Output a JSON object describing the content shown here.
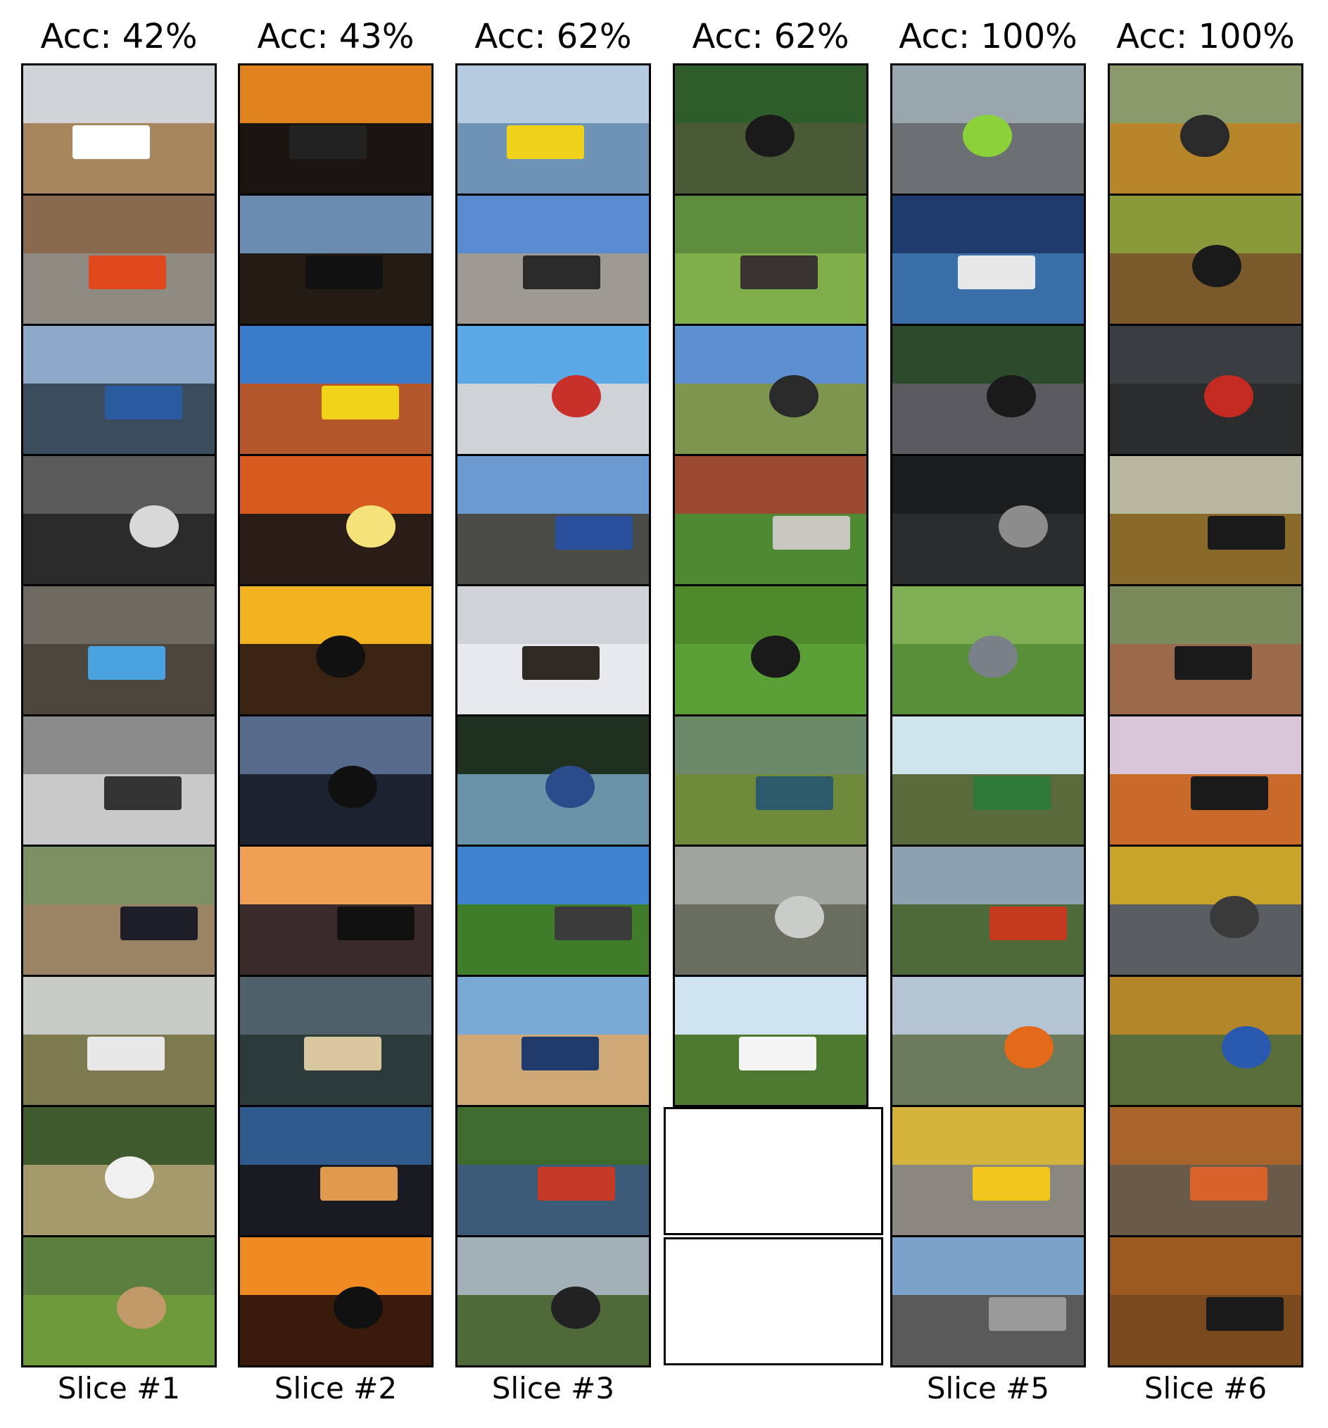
{
  "columns": [
    {
      "accuracy_label": "Acc: 42%",
      "slice_label": "Slice #1",
      "thumbnails": [
        {
          "name": "burned-hillside-truck",
          "sky": "#cfd3d6",
          "ground": "#a7865e",
          "objects": [
            {
              "c": "#ffffff",
              "shape": "rect"
            }
          ]
        },
        {
          "name": "red-scooter-cobblestone",
          "sky": "#8a6a4e",
          "ground": "#8f8a82",
          "objects": [
            {
              "c": "#e2481e",
              "shape": "rect"
            }
          ]
        },
        {
          "name": "woman-car-rapids",
          "sky": "#8ea8c9",
          "ground": "#3b4c5c",
          "objects": [
            {
              "c": "#2c5aa0",
              "shape": "rect"
            }
          ]
        },
        {
          "name": "skeleton-motorcycle-bw",
          "sky": "#5a5a5a",
          "ground": "#2a2a2a",
          "objects": [
            {
              "c": "#d8d8d8",
              "shape": "blob"
            }
          ]
        },
        {
          "name": "truck-pool-flood",
          "sky": "#6f6a61",
          "ground": "#4d463c",
          "objects": [
            {
              "c": "#4aa3e0",
              "shape": "rect"
            }
          ]
        },
        {
          "name": "flooded-street-bw",
          "sky": "#8b8b8b",
          "ground": "#c9c9c9",
          "objects": [
            {
              "c": "#333333",
              "shape": "rect"
            }
          ]
        },
        {
          "name": "woman-motorcycle-forest",
          "sky": "#7c8f62",
          "ground": "#9a8463",
          "objects": [
            {
              "c": "#1e1e28",
              "shape": "rect"
            }
          ]
        },
        {
          "name": "foggy-field-trailer",
          "sky": "#c8cbc6",
          "ground": "#7d7a4f",
          "objects": [
            {
              "c": "#e8e8e8",
              "shape": "rect"
            }
          ]
        },
        {
          "name": "zebra-dirt-road",
          "sky": "#3f5a2d",
          "ground": "#a49a6b",
          "objects": [
            {
              "c": "#f0f0f0",
              "shape": "blob"
            }
          ]
        },
        {
          "name": "camels-park",
          "sky": "#5b7f3e",
          "ground": "#6e9a3c",
          "objects": [
            {
              "c": "#c29a6a",
              "shape": "blob"
            }
          ]
        }
      ]
    },
    {
      "accuracy_label": "Acc: 43%",
      "slice_label": "Slice #2",
      "thumbnails": [
        {
          "name": "truck-sunset",
          "sky": "#e0831f",
          "ground": "#1c1410",
          "objects": [
            {
              "c": "#222222",
              "shape": "rect"
            }
          ]
        },
        {
          "name": "train-silhouette-dusk",
          "sky": "#6b8bb0",
          "ground": "#241b15",
          "objects": [
            {
              "c": "#111111",
              "shape": "rect"
            }
          ]
        },
        {
          "name": "australia-bus-outback",
          "sky": "#3a7cc7",
          "ground": "#b4572c",
          "objects": [
            {
              "c": "#f1d31a",
              "shape": "rect"
            }
          ]
        },
        {
          "name": "jeep-orange-dusk",
          "sky": "#d85a1e",
          "ground": "#2a1c16",
          "objects": [
            {
              "c": "#f6e27a",
              "shape": "blob"
            }
          ]
        },
        {
          "name": "cyclist-yellow-sky",
          "sky": "#f3b21f",
          "ground": "#3b2412",
          "objects": [
            {
              "c": "#111111",
              "shape": "blob"
            }
          ]
        },
        {
          "name": "bike-silhouette-night",
          "sky": "#566a8b",
          "ground": "#1d2230",
          "objects": [
            {
              "c": "#101010",
              "shape": "blob"
            }
          ]
        },
        {
          "name": "car-reflection-sunset",
          "sky": "#f0a055",
          "ground": "#3a2a2a",
          "objects": [
            {
              "c": "#111111",
              "shape": "rect"
            }
          ]
        },
        {
          "name": "truck-highway-shutterstock",
          "sky": "#50606a",
          "ground": "#2d3a3a",
          "objects": [
            {
              "c": "#d9c7a0",
              "shape": "rect"
            }
          ]
        },
        {
          "name": "city-dusk-istock",
          "sky": "#2f5b8c",
          "ground": "#1a1a22",
          "objects": [
            {
              "c": "#e09a50",
              "shape": "rect"
            }
          ]
        },
        {
          "name": "friends-bikes-sunset",
          "sky": "#f08a22",
          "ground": "#3a1a0a",
          "objects": [
            {
              "c": "#111111",
              "shape": "blob"
            }
          ]
        }
      ]
    },
    {
      "accuracy_label": "Acc: 62%",
      "slice_label": "Slice #3",
      "thumbnails": [
        {
          "name": "amphibious-bus-water",
          "sky": "#b7cbe0",
          "ground": "#6f93b5",
          "objects": [
            {
              "c": "#f0d21c",
              "shape": "rect"
            }
          ]
        },
        {
          "name": "vehicle-beach-horizon",
          "sky": "#5a8ad0",
          "ground": "#9c9a93",
          "objects": [
            {
              "c": "#2a2a2a",
              "shape": "rect"
            }
          ]
        },
        {
          "name": "kids-scooters-palms",
          "sky": "#5aa9e6",
          "ground": "#cfd3d8",
          "objects": [
            {
              "c": "#c8302a",
              "shape": "blob"
            }
          ]
        },
        {
          "name": "bus-police-scene",
          "sky": "#6a9acf",
          "ground": "#4a4a46",
          "objects": [
            {
              "c": "#2a4f9c",
              "shape": "rect"
            }
          ]
        },
        {
          "name": "locomotive-snow",
          "sky": "#cfd3d8",
          "ground": "#e7e9ec",
          "objects": [
            {
              "c": "#2f2a24",
              "shape": "rect"
            }
          ]
        },
        {
          "name": "motorcycle-river-splash",
          "sky": "#203020",
          "ground": "#6a93a8",
          "objects": [
            {
              "c": "#2b4c8a",
              "shape": "blob"
            }
          ]
        },
        {
          "name": "manor-lawn-cars",
          "sky": "#3f83d0",
          "ground": "#3f7d2a",
          "objects": [
            {
              "c": "#3b3b3b",
              "shape": "rect"
            }
          ]
        },
        {
          "name": "pickup-beach-sand",
          "sky": "#7aa9d6",
          "ground": "#cfa877",
          "objects": [
            {
              "c": "#1f3a6b",
              "shape": "rect"
            }
          ]
        },
        {
          "name": "fire-trucks-harbor",
          "sky": "#406b2e",
          "ground": "#3b5b78",
          "objects": [
            {
              "c": "#c43a26",
              "shape": "rect"
            }
          ]
        },
        {
          "name": "cyclist-country-road",
          "sky": "#a3b0b8",
          "ground": "#4f6a38",
          "objects": [
            {
              "c": "#222222",
              "shape": "blob"
            }
          ]
        }
      ]
    },
    {
      "accuracy_label": "Acc: 62%",
      "slice_label": "",
      "thumbnails": [
        {
          "name": "bike-forest-ruins",
          "sky": "#2f5d2a",
          "ground": "#4a5a36",
          "objects": [
            {
              "c": "#1a1a1a",
              "shape": "blob"
            }
          ]
        },
        {
          "name": "abandoned-train-grass",
          "sky": "#5e8e3c",
          "ground": "#7fae4a",
          "objects": [
            {
              "c": "#3a3430",
              "shape": "rect"
            }
          ]
        },
        {
          "name": "bike-meadow-clouds",
          "sky": "#5d8fd1",
          "ground": "#7e9550",
          "objects": [
            {
              "c": "#2a2a2a",
              "shape": "blob"
            }
          ]
        },
        {
          "name": "garden-shed-bikes",
          "sky": "#9a4a30",
          "ground": "#4f8a32",
          "objects": [
            {
              "c": "#c8c8c0",
              "shape": "rect"
            }
          ]
        },
        {
          "name": "bike-green-bushes",
          "sky": "#4e8a2c",
          "ground": "#5aa036",
          "objects": [
            {
              "c": "#1a1a1a",
              "shape": "blob"
            }
          ]
        },
        {
          "name": "overturned-truck",
          "sky": "#6a8a6a",
          "ground": "#6e8a3a",
          "objects": [
            {
              "c": "#2d5a6a",
              "shape": "rect"
            }
          ]
        },
        {
          "name": "wrecked-car-forest",
          "sky": "#a0a49c",
          "ground": "#6a6e60",
          "objects": [
            {
              "c": "#c9ccc8",
              "shape": "blob"
            }
          ]
        },
        {
          "name": "car-on-rocks-tree",
          "sky": "#cfe2ef",
          "ground": "#4d7a30",
          "objects": [
            {
              "c": "#f4f4f4",
              "shape": "rect"
            }
          ]
        }
      ]
    },
    {
      "accuracy_label": "Acc: 100%",
      "slice_label": "Slice #5",
      "thumbnails": [
        {
          "name": "cyclists-city-street",
          "sky": "#9aa6ae",
          "ground": "#6d7073",
          "objects": [
            {
              "c": "#8bd13a",
              "shape": "blob"
            }
          ]
        },
        {
          "name": "scooter-rainy-night",
          "sky": "#1f3b6e",
          "ground": "#3a6ea8",
          "objects": [
            {
              "c": "#e8e8e8",
              "shape": "rect"
            }
          ]
        },
        {
          "name": "motorcycle-road-blur",
          "sky": "#2e4a2c",
          "ground": "#5a5a60",
          "objects": [
            {
              "c": "#1a1a1a",
              "shape": "blob"
            }
          ]
        },
        {
          "name": "motorcycle-studio-dark",
          "sky": "#1a1c1e",
          "ground": "#2a2c2e",
          "objects": [
            {
              "c": "#8c8c8c",
              "shape": "blob"
            }
          ]
        },
        {
          "name": "bicycle-grass",
          "sky": "#7fae55",
          "ground": "#5a8f3a",
          "objects": [
            {
              "c": "#7a8088",
              "shape": "blob"
            }
          ]
        },
        {
          "name": "passenger-train-curve",
          "sky": "#cfe3ea",
          "ground": "#5a6a3a",
          "objects": [
            {
              "c": "#2f7a3a",
              "shape": "rect"
            }
          ]
        },
        {
          "name": "three-pickups-mountains",
          "sky": "#8da1b0",
          "ground": "#4d6a38",
          "objects": [
            {
              "c": "#c43a1f",
              "shape": "rect"
            }
          ]
        },
        {
          "name": "cyclist-mountain-view",
          "sky": "#b4c4d2",
          "ground": "#6a7a5a",
          "objects": [
            {
              "c": "#e26a1a",
              "shape": "blob"
            }
          ]
        },
        {
          "name": "yellow-van-cobblestone",
          "sky": "#d2b23a",
          "ground": "#8a8680",
          "objects": [
            {
              "c": "#f3c61c",
              "shape": "rect"
            }
          ]
        },
        {
          "name": "city-highway-sunrise",
          "sky": "#7ba2c8",
          "ground": "#5a5a5a",
          "objects": [
            {
              "c": "#9a9a9a",
              "shape": "rect"
            }
          ]
        }
      ]
    },
    {
      "accuracy_label": "Acc: 100%",
      "slice_label": "Slice #6",
      "thumbnails": [
        {
          "name": "scooter-autumn-park",
          "sky": "#8a9a6a",
          "ground": "#b8862a",
          "objects": [
            {
              "c": "#2a2a2a",
              "shape": "blob"
            }
          ]
        },
        {
          "name": "ebike-autumn-forest",
          "sky": "#8a9a3a",
          "ground": "#7a5a2a",
          "objects": [
            {
              "c": "#1a1a1a",
              "shape": "blob"
            }
          ]
        },
        {
          "name": "man-carrying-bikes",
          "sky": "#3a3e40",
          "ground": "#2a2c2e",
          "objects": [
            {
              "c": "#c42a22",
              "shape": "blob"
            }
          ]
        },
        {
          "name": "steam-train-autumn",
          "sky": "#b8b8a0",
          "ground": "#8a6a2a",
          "objects": [
            {
              "c": "#1a1a1a",
              "shape": "rect"
            }
          ]
        },
        {
          "name": "man-mobility-scooter",
          "sky": "#7a8a5a",
          "ground": "#9a6a4a",
          "objects": [
            {
              "c": "#1a1a1a",
              "shape": "rect"
            }
          ]
        },
        {
          "name": "steam-train-painting",
          "sky": "#d9c7d9",
          "ground": "#c86a2a",
          "objects": [
            {
              "c": "#1a1a1a",
              "shape": "rect"
            }
          ]
        },
        {
          "name": "child-scooter-road",
          "sky": "#c8a42a",
          "ground": "#5a5e62",
          "objects": [
            {
              "c": "#3a3a3a",
              "shape": "blob"
            }
          ]
        },
        {
          "name": "child-balance-bike",
          "sky": "#b4862a",
          "ground": "#5a6e3a",
          "objects": [
            {
              "c": "#2a5ab0",
              "shape": "blob"
            }
          ]
        },
        {
          "name": "orange-van-autumn",
          "sky": "#a8642a",
          "ground": "#6a5a4a",
          "objects": [
            {
              "c": "#d9622a",
              "shape": "rect"
            }
          ]
        },
        {
          "name": "locomotive-autumn-forest",
          "sky": "#9a5a22",
          "ground": "#7a4a1e",
          "objects": [
            {
              "c": "#1a1a1a",
              "shape": "rect"
            }
          ]
        }
      ]
    }
  ]
}
